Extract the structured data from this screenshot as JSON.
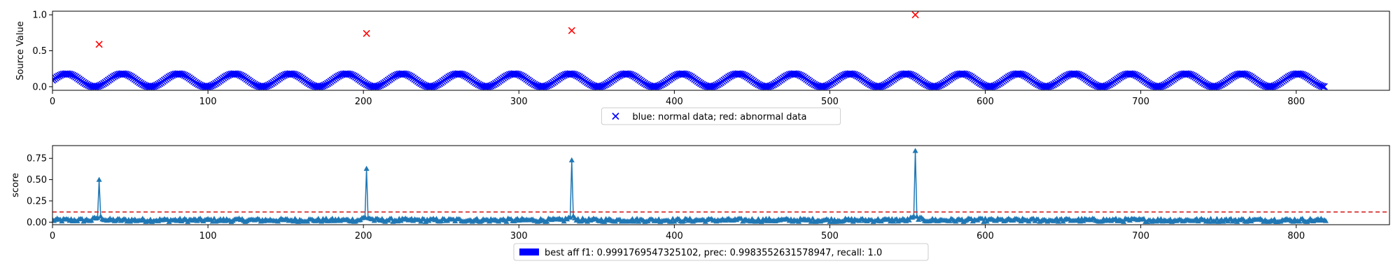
{
  "chart_data": [
    {
      "type": "scatter",
      "ylabel": "Source Value",
      "xlim": [
        0,
        860
      ],
      "ylim": [
        -0.05,
        1.05
      ],
      "x_ticks": [
        0,
        100,
        200,
        300,
        400,
        500,
        600,
        700,
        800
      ],
      "y_ticks": [
        0.0,
        0.5,
        1.0
      ],
      "y_tick_labels": [
        "0.0",
        "0.5",
        "1.0"
      ],
      "legend": {
        "label": "blue: normal data; red: abnormal data",
        "placement": "lower center",
        "marker": "x",
        "color": "#0000ff"
      },
      "series": [
        {
          "color": "#0000ff",
          "marker": "x",
          "generator": {
            "x_start": 0,
            "x_end": 818,
            "step": 1,
            "mean": 0.09,
            "amplitude": 0.09,
            "period": 36
          }
        },
        {
          "color": "#ff0000",
          "marker": "x",
          "x": [
            30,
            202,
            334,
            555
          ],
          "y": [
            0.59,
            0.74,
            0.78,
            1.0
          ]
        }
      ]
    },
    {
      "type": "line",
      "ylabel": "score",
      "xlim": [
        0,
        860
      ],
      "ylim": [
        -0.03,
        0.9
      ],
      "x_ticks": [
        0,
        100,
        200,
        300,
        400,
        500,
        600,
        700,
        800
      ],
      "y_ticks": [
        0.0,
        0.25,
        0.5,
        0.75
      ],
      "y_tick_labels": [
        "0.00",
        "0.25",
        "0.50",
        "0.75"
      ],
      "threshold": 0.12,
      "threshold_color": "#d62728",
      "legend": {
        "label": "best aff f1: 0.9991769547325102, prec: 0.9983552631578947, recall: 1.0",
        "placement": "lower center",
        "color": "#0000ff"
      },
      "series": [
        {
          "color": "#1f77b4",
          "marker": "^",
          "generator": {
            "x_start": 0,
            "x_end": 819,
            "step": 1,
            "baseline": 0.025,
            "noise": 0.02
          },
          "spikes": [
            {
              "x": 30,
              "y": 0.5
            },
            {
              "x": 202,
              "y": 0.63
            },
            {
              "x": 334,
              "y": 0.73
            },
            {
              "x": 555,
              "y": 0.84
            }
          ]
        }
      ]
    }
  ]
}
